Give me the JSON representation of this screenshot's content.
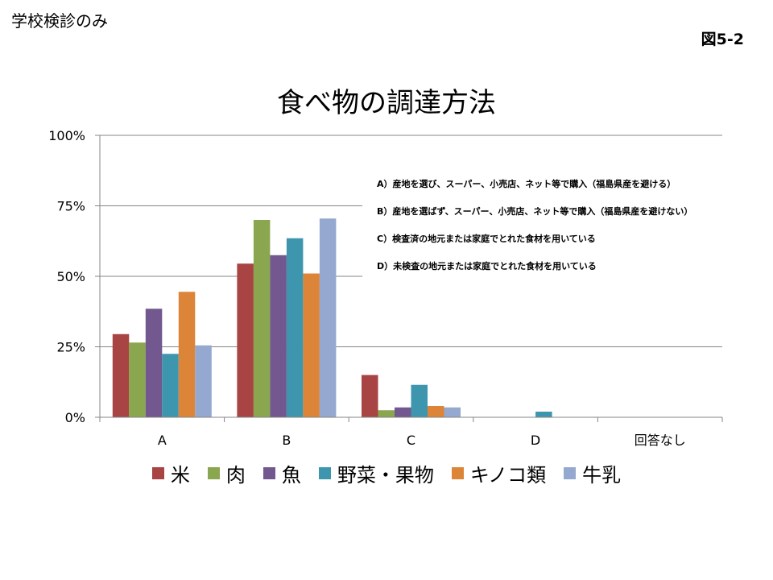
{
  "page": {
    "corner_label": "学校検診のみ",
    "figure_number": "図5-2"
  },
  "chart_data": {
    "type": "bar",
    "title": "食べ物の調達方法",
    "categories": [
      "A",
      "B",
      "C",
      "D",
      "回答なし"
    ],
    "yticks": [
      "0%",
      "25%",
      "50%",
      "75%",
      "100%"
    ],
    "ylim": [
      0,
      100
    ],
    "grid": true,
    "legend_position": "bottom",
    "series": [
      {
        "name": "米",
        "color": "#a84443",
        "values": [
          29.5,
          54.5,
          15,
          0,
          0
        ]
      },
      {
        "name": "肉",
        "color": "#8aa64e",
        "values": [
          26.5,
          70,
          2.5,
          0,
          0
        ]
      },
      {
        "name": "魚",
        "color": "#72588f",
        "values": [
          38.5,
          57.5,
          3.5,
          0,
          0
        ]
      },
      {
        "name": "野菜・果物",
        "color": "#3d96ae",
        "values": [
          22.5,
          63.5,
          11.5,
          2,
          0
        ]
      },
      {
        "name": "キノコ類",
        "color": "#dc8538",
        "values": [
          44.5,
          51,
          4,
          0,
          0
        ]
      },
      {
        "name": "牛乳",
        "color": "#94a8d0",
        "values": [
          25.5,
          70.5,
          3.5,
          0,
          0
        ]
      }
    ],
    "annotations": [
      "A）産地を選び、スーパー、小売店、ネット等で購入（福島県産を避ける）",
      "B）産地を選ばず、スーパー、小売店、ネット等で購入（福島県産を避けない）",
      "C）検査済の地元または家庭でとれた食材を用いている",
      "D）未検査の地元または家庭でとれた食材を用いている"
    ]
  }
}
